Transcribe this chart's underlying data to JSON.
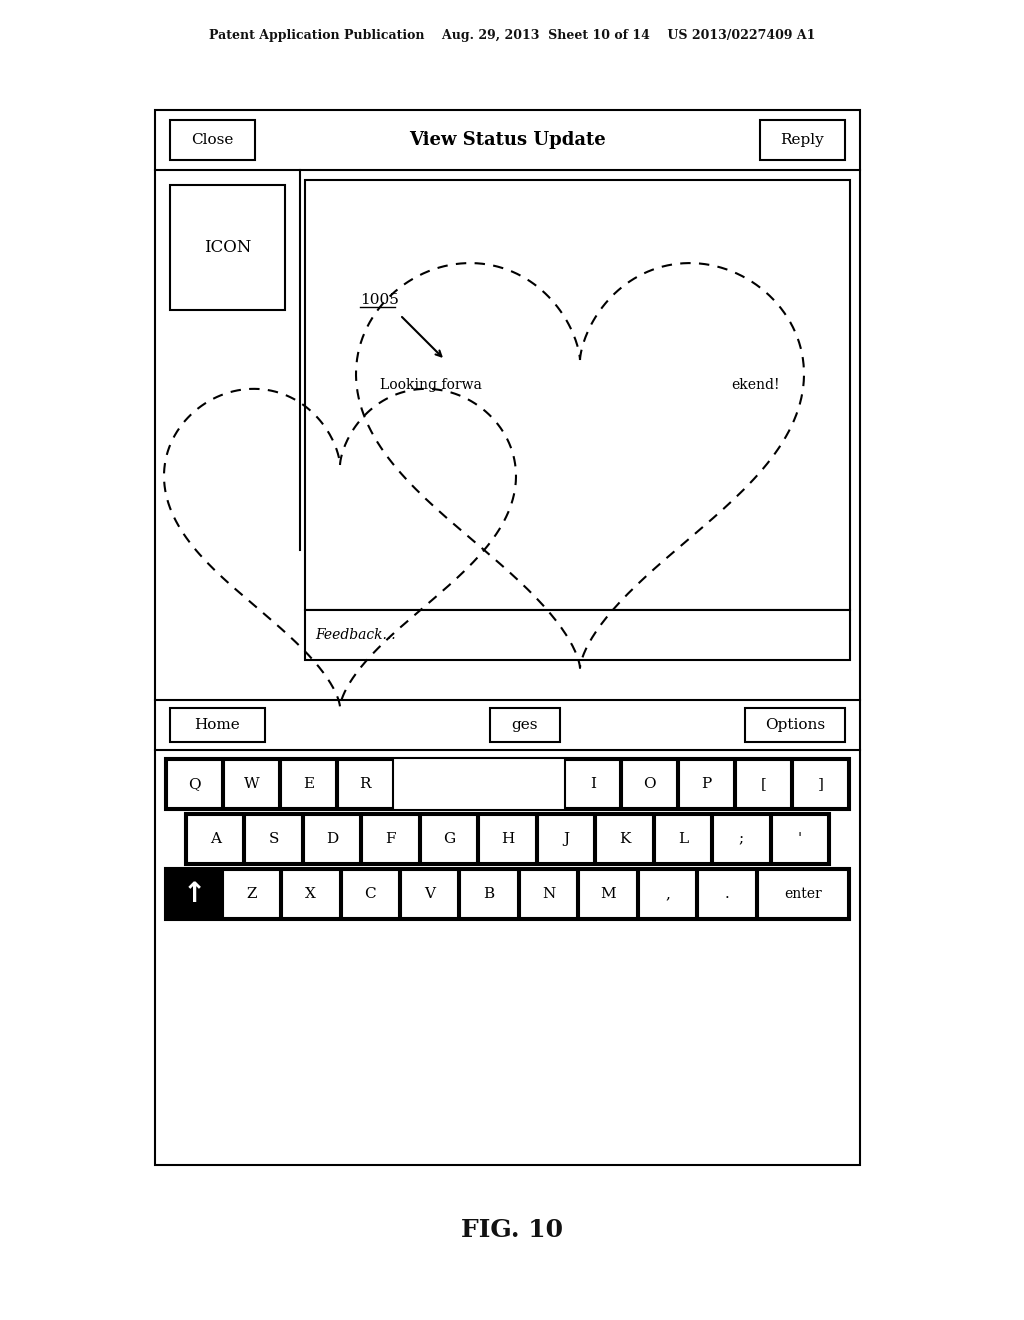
{
  "bg_color": "#ffffff",
  "header_text": "Patent Application Publication    Aug. 29, 2013  Sheet 10 of 14    US 2013/0227409 A1",
  "fig_label": "FIG. 10",
  "title_text": "View Status Update",
  "close_text": "Close",
  "reply_text": "Reply",
  "icon_text": "ICON",
  "label_1005": "1005",
  "text_looking": "Looking forwa",
  "text_ekend": "ekend!",
  "text_feedback": "Feedback...",
  "home_text": "Home",
  "ges_text": "ges",
  "options_text": "Options",
  "row1_labels": [
    "Q",
    "W",
    "E",
    "R",
    "",
    "",
    "",
    "I",
    "O",
    "P",
    "[",
    "]"
  ],
  "row2_labels": [
    "A",
    "S",
    "D",
    "F",
    "G",
    "H",
    "J",
    "K",
    "L",
    ";",
    "'"
  ],
  "row3_mid_labels": [
    "Z",
    "X",
    "C",
    "V",
    "B",
    "N",
    "M",
    ",",
    "."
  ]
}
